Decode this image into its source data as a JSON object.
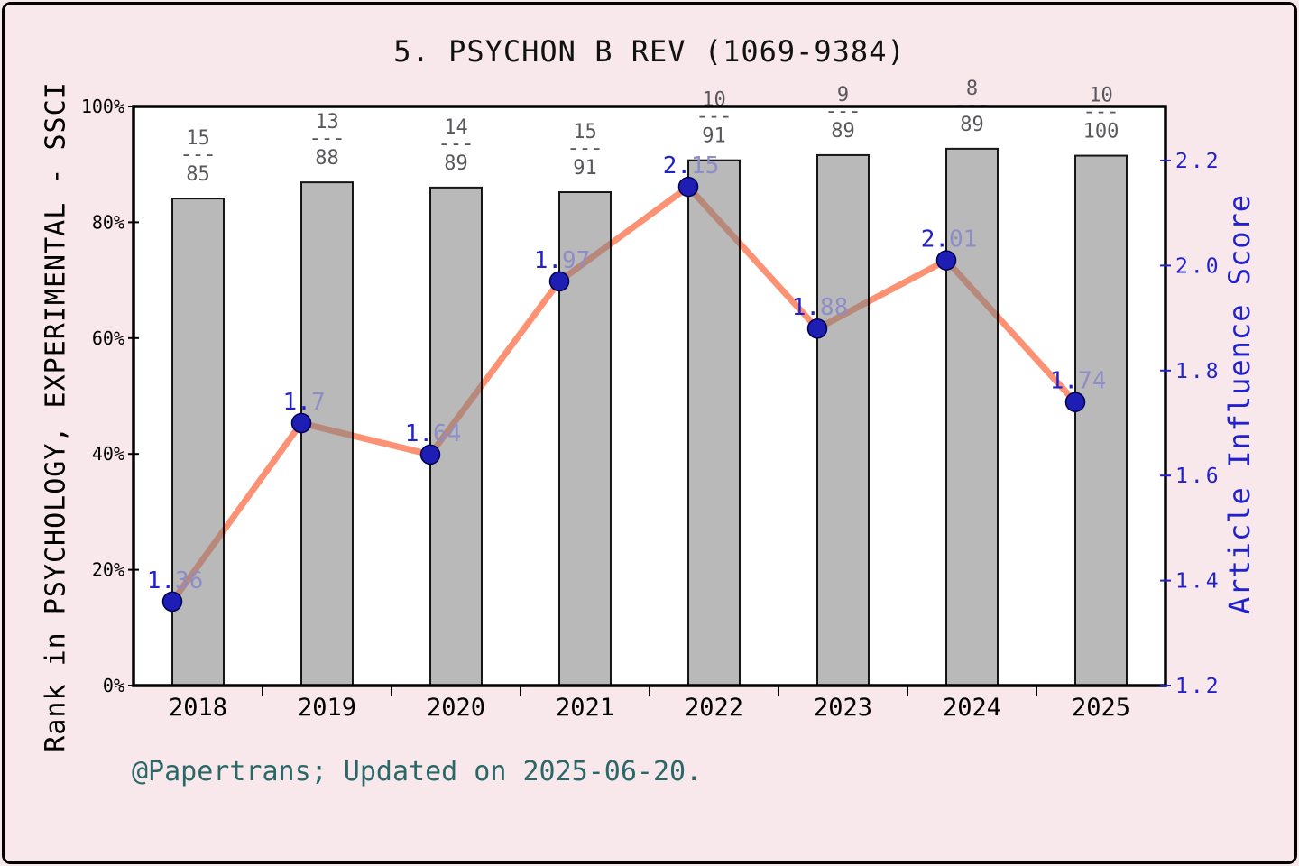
{
  "title": "5. PSYCHON B REV (1069-9384)",
  "footer": "@Papertrans; Updated on 2025-06-20.",
  "chart_data": {
    "type": "bar+line combo",
    "categories": [
      "2018",
      "2019",
      "2020",
      "2021",
      "2022",
      "2023",
      "2024",
      "2025"
    ],
    "left_axis": {
      "label": "Rank in PSYCHOLOGY, EXPERIMENTAL - SSCI",
      "range": [
        0,
        100
      ],
      "ticks": [
        "0%",
        "20%",
        "40%",
        "60%",
        "80%",
        "100%"
      ],
      "tick_values": [
        0,
        20,
        40,
        60,
        80,
        100
      ],
      "color": "#000000"
    },
    "right_axis": {
      "label": "Article Influence Score",
      "range": [
        1.2,
        2.2
      ],
      "ticks": [
        "1.2",
        "1.4",
        "1.6",
        "1.8",
        "2.0",
        "2.2"
      ],
      "tick_values": [
        1.2,
        1.4,
        1.6,
        1.8,
        2.0,
        2.2
      ],
      "color": "#2222cc"
    },
    "grid": false,
    "legend": "none",
    "series": [
      {
        "name": "rank-percentile-bars",
        "type": "bar",
        "axis": "left",
        "values_pct": [
          84.1,
          86.9,
          86.0,
          85.2,
          90.7,
          91.6,
          92.7,
          91.5
        ],
        "fractions": [
          {
            "numerator": "15",
            "dash": "---",
            "denominator": "85"
          },
          {
            "numerator": "13",
            "dash": "---",
            "denominator": "88"
          },
          {
            "numerator": "14",
            "dash": "---",
            "denominator": "89"
          },
          {
            "numerator": "15",
            "dash": "---",
            "denominator": "91"
          },
          {
            "numerator": "10",
            "dash": "---",
            "denominator": "91"
          },
          {
            "numerator": "9",
            "dash": "---",
            "denominator": "89"
          },
          {
            "numerator": "8",
            "dash": "---",
            "denominator": "89"
          },
          {
            "numerator": "10",
            "dash": "---",
            "denominator": "100"
          }
        ],
        "bar_fill": "#808080",
        "bar_fill_opacity": 0.55,
        "bar_edge": "#000000",
        "fraction_text_color": "#58585c"
      },
      {
        "name": "article-influence-score",
        "type": "line",
        "axis": "right",
        "values": [
          1.36,
          1.7,
          1.64,
          1.97,
          2.15,
          1.88,
          2.01,
          1.74
        ],
        "point_labels": [
          "1.36",
          "1.7",
          "1.64",
          "1.97",
          "2.15",
          "1.88",
          "2.01",
          "1.74"
        ],
        "line_color": "#fc9273",
        "point_color": "#1e1eb4",
        "point_edge": "#000050",
        "label_color_strong": "#2222cc",
        "label_color_faint": "#8d8dc8"
      }
    ]
  },
  "colors": {
    "background": "#f8e8eb",
    "plot_background": "#ffffff",
    "plot_border": "#000000",
    "footer_text": "#2a6868",
    "title_text": "#111111"
  }
}
